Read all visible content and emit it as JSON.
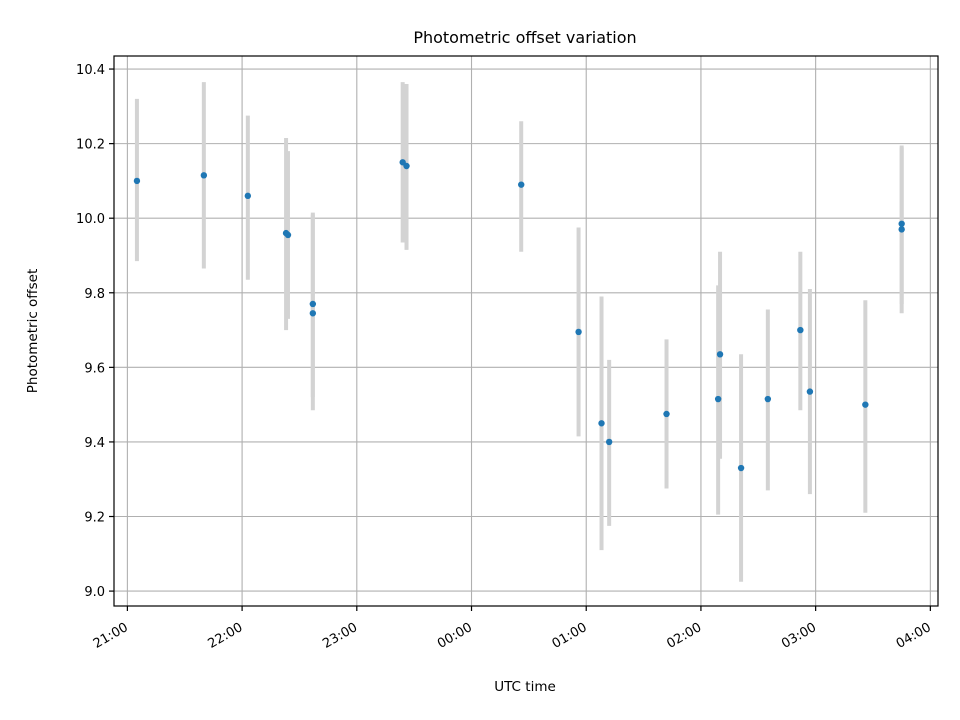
{
  "chart_data": {
    "type": "scatter",
    "title": "Photometric offset variation",
    "xlabel": "UTC time",
    "ylabel": "Photometric offset",
    "x_tick_labels": [
      "21:00",
      "22:00",
      "23:00",
      "00:00",
      "01:00",
      "02:00",
      "03:00",
      "04:00"
    ],
    "y_tick_labels": [
      "9.0",
      "9.2",
      "9.4",
      "9.6",
      "9.8",
      "10.0",
      "10.2",
      "10.4"
    ],
    "xlim": [
      "20:53",
      "04:04"
    ],
    "ylim": [
      8.96,
      10.435
    ],
    "grid": true,
    "series": [
      {
        "points": [
          {
            "time": "21:05",
            "y": 10.1,
            "y_low": 9.885,
            "y_high": 10.32
          },
          {
            "time": "21:40",
            "y": 10.115,
            "y_low": 9.865,
            "y_high": 10.365
          },
          {
            "time": "22:03",
            "y": 10.06,
            "y_low": 9.835,
            "y_high": 10.275
          },
          {
            "time": "22:23",
            "y": 9.96,
            "y_low": 9.7,
            "y_high": 10.215
          },
          {
            "time": "22:24",
            "y": 9.955,
            "y_low": 9.73,
            "y_high": 10.18
          },
          {
            "time": "22:37",
            "y": 9.77,
            "y_low": 9.52,
            "y_high": 10.01
          },
          {
            "time": "22:37",
            "y": 9.745,
            "y_low": 9.485,
            "y_high": 10.015
          },
          {
            "time": "23:24",
            "y": 10.15,
            "y_low": 9.935,
            "y_high": 10.365
          },
          {
            "time": "23:26",
            "y": 10.14,
            "y_low": 9.915,
            "y_high": 10.36
          },
          {
            "time": "00:26",
            "y": 10.09,
            "y_low": 9.91,
            "y_high": 10.26
          },
          {
            "time": "00:56",
            "y": 9.695,
            "y_low": 9.415,
            "y_high": 9.975
          },
          {
            "time": "01:08",
            "y": 9.45,
            "y_low": 9.11,
            "y_high": 9.79
          },
          {
            "time": "01:12",
            "y": 9.4,
            "y_low": 9.175,
            "y_high": 9.62
          },
          {
            "time": "01:42",
            "y": 9.475,
            "y_low": 9.275,
            "y_high": 9.675
          },
          {
            "time": "02:09",
            "y": 9.515,
            "y_low": 9.205,
            "y_high": 9.82
          },
          {
            "time": "02:10",
            "y": 9.635,
            "y_low": 9.355,
            "y_high": 9.91
          },
          {
            "time": "02:21",
            "y": 9.33,
            "y_low": 9.025,
            "y_high": 9.635
          },
          {
            "time": "02:35",
            "y": 9.515,
            "y_low": 9.27,
            "y_high": 9.755
          },
          {
            "time": "02:52",
            "y": 9.7,
            "y_low": 9.485,
            "y_high": 9.91
          },
          {
            "time": "02:57",
            "y": 9.535,
            "y_low": 9.26,
            "y_high": 9.81
          },
          {
            "time": "03:26",
            "y": 9.5,
            "y_low": 9.21,
            "y_high": 9.78
          },
          {
            "time": "03:45",
            "y": 9.97,
            "y_low": 9.745,
            "y_high": 10.19
          },
          {
            "time": "03:45",
            "y": 9.985,
            "y_low": 9.77,
            "y_high": 10.195
          }
        ]
      }
    ],
    "colors": {
      "point": "#1f77b4",
      "error_bar": "#d3d3d3",
      "grid": "#b0b0b0"
    }
  }
}
